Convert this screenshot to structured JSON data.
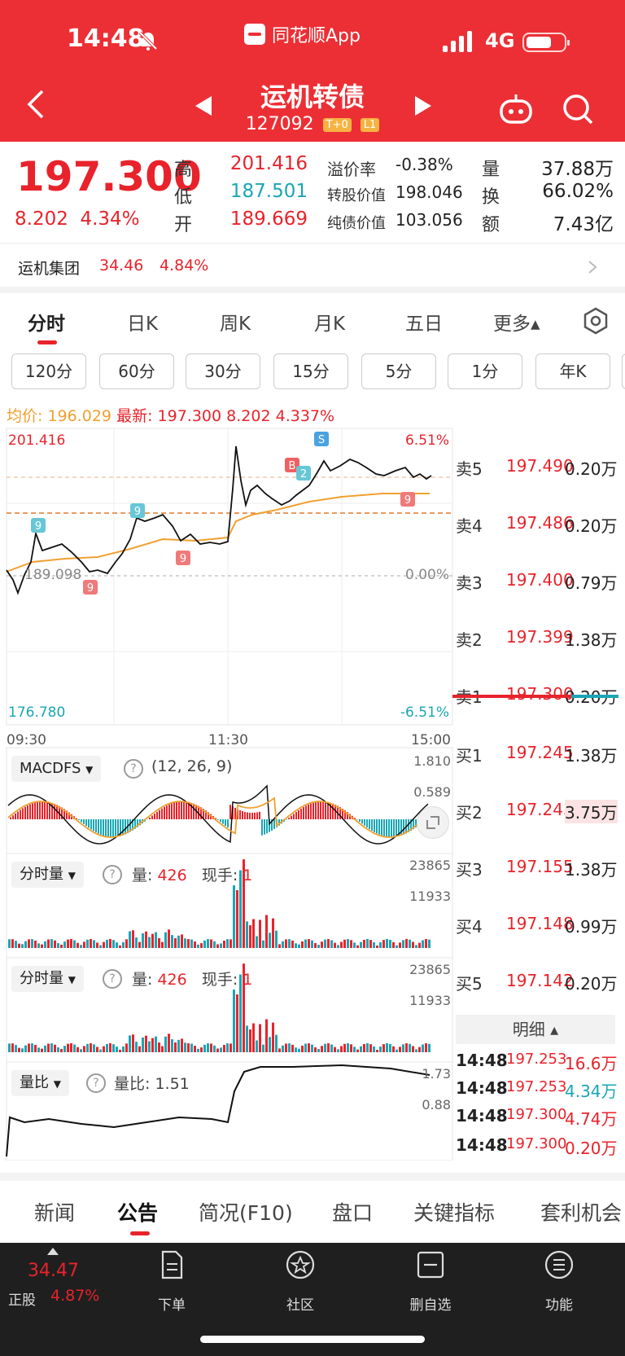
{
  "status": {
    "time": "14:48",
    "app_name": "同花顺App",
    "network": "4G"
  },
  "header": {
    "title": "运机转债",
    "code": "127092",
    "tag1": "T+0",
    "tag2": "L1"
  },
  "quote": {
    "price": "197.300",
    "change": "8.202",
    "change_pct": "4.34%",
    "high_label": "高",
    "high": "201.416",
    "low_label": "低",
    "low": "187.501",
    "open_label": "开",
    "open": "189.669",
    "premium_label": "溢价率",
    "premium": "-0.38%",
    "conv_label": "转股价值",
    "conv": "198.046",
    "bond_label": "纯债价值",
    "bond": "103.056",
    "vol_label": "量",
    "vol": "37.88万",
    "turn_label": "换",
    "turn": "66.02%",
    "amt_label": "额",
    "amt": "7.43亿"
  },
  "underlying": {
    "name": "运机集团",
    "price": "34.46",
    "pct": "4.84%"
  },
  "period_tabs": [
    "分时",
    "日K",
    "周K",
    "月K",
    "五日",
    "更多▴"
  ],
  "pills": [
    "120分",
    "60分",
    "30分",
    "15分",
    "5分",
    "1分",
    "年K"
  ],
  "avg_row": {
    "avg_label": "均价:",
    "avg": "196.029",
    "latest_label": "最新:",
    "latest": "197.300",
    "chg": "8.202",
    "pct": "4.337%"
  },
  "chart": {
    "y_top": "201.416",
    "y_mid": "189.098",
    "y_bottom": "176.780",
    "pct_top": "6.51%",
    "pct_mid": "0.00%",
    "pct_bottom": "-6.51%",
    "t_start": "09:30",
    "t_mid": "11:30",
    "t_end": "15:00",
    "badge_b": "B",
    "badge_s": "S",
    "badge_9": "9",
    "badge_2": "2"
  },
  "macd": {
    "name": "MACDFS",
    "params": "(12, 26, 9)",
    "top": "1.810",
    "mid": "0.589"
  },
  "vol1": {
    "name": "分时量",
    "q_label": "量:",
    "q": "426",
    "h_label": "现手:",
    "h": "1",
    "top": "23865",
    "mid": "11933"
  },
  "vol2": {
    "name": "分时量",
    "q_label": "量:",
    "q": "426",
    "h_label": "现手:",
    "h": "1",
    "top": "23865",
    "mid": "11933"
  },
  "ratio": {
    "name": "量比",
    "label": "量比:",
    "value": "1.51",
    "top": "1.73",
    "mid": "0.88"
  },
  "orderbook": {
    "asks": [
      {
        "label": "卖5",
        "price": "197.490",
        "vol": "0.20万"
      },
      {
        "label": "卖4",
        "price": "197.486",
        "vol": "0.20万"
      },
      {
        "label": "卖3",
        "price": "197.400",
        "vol": "0.79万"
      },
      {
        "label": "卖2",
        "price": "197.399",
        "vol": "1.38万"
      },
      {
        "label": "卖1",
        "price": "197.300",
        "vol": "0.20万"
      }
    ],
    "bids": [
      {
        "label": "买1",
        "price": "197.245",
        "vol": "1.38万"
      },
      {
        "label": "买2",
        "price": "197.243",
        "vol": "3.75万"
      },
      {
        "label": "买3",
        "price": "197.155",
        "vol": "1.38万"
      },
      {
        "label": "买4",
        "price": "197.148",
        "vol": "0.99万"
      },
      {
        "label": "买5",
        "price": "197.142",
        "vol": "0.20万"
      }
    ],
    "detail_title": "明细 ▴",
    "details": [
      {
        "time": "14:48",
        "price": "197.253",
        "vol": "16.6万",
        "color": "#e8232b"
      },
      {
        "time": "14:48",
        "price": "197.253",
        "vol": "4.34万",
        "color": "#1aa6b4"
      },
      {
        "time": "14:48",
        "price": "197.300",
        "vol": "4.74万",
        "color": "#e8232b"
      },
      {
        "time": "14:48",
        "price": "197.300",
        "vol": "0.20万",
        "color": "#e8232b"
      }
    ]
  },
  "bottom_tabs": [
    "新闻",
    "公告",
    "简况(F10)",
    "盘口",
    "关键指标",
    "套利机会"
  ],
  "bottom_nav": {
    "stock_price": "34.47",
    "stock_label": "正股",
    "stock_pct": "4.87%",
    "items": [
      "下单",
      "社区",
      "删自选",
      "功能"
    ]
  },
  "colors": {
    "brand": "#ec2f35",
    "up": "#e8232b",
    "down": "#1aa6b4",
    "avg_line": "#f0a030"
  }
}
